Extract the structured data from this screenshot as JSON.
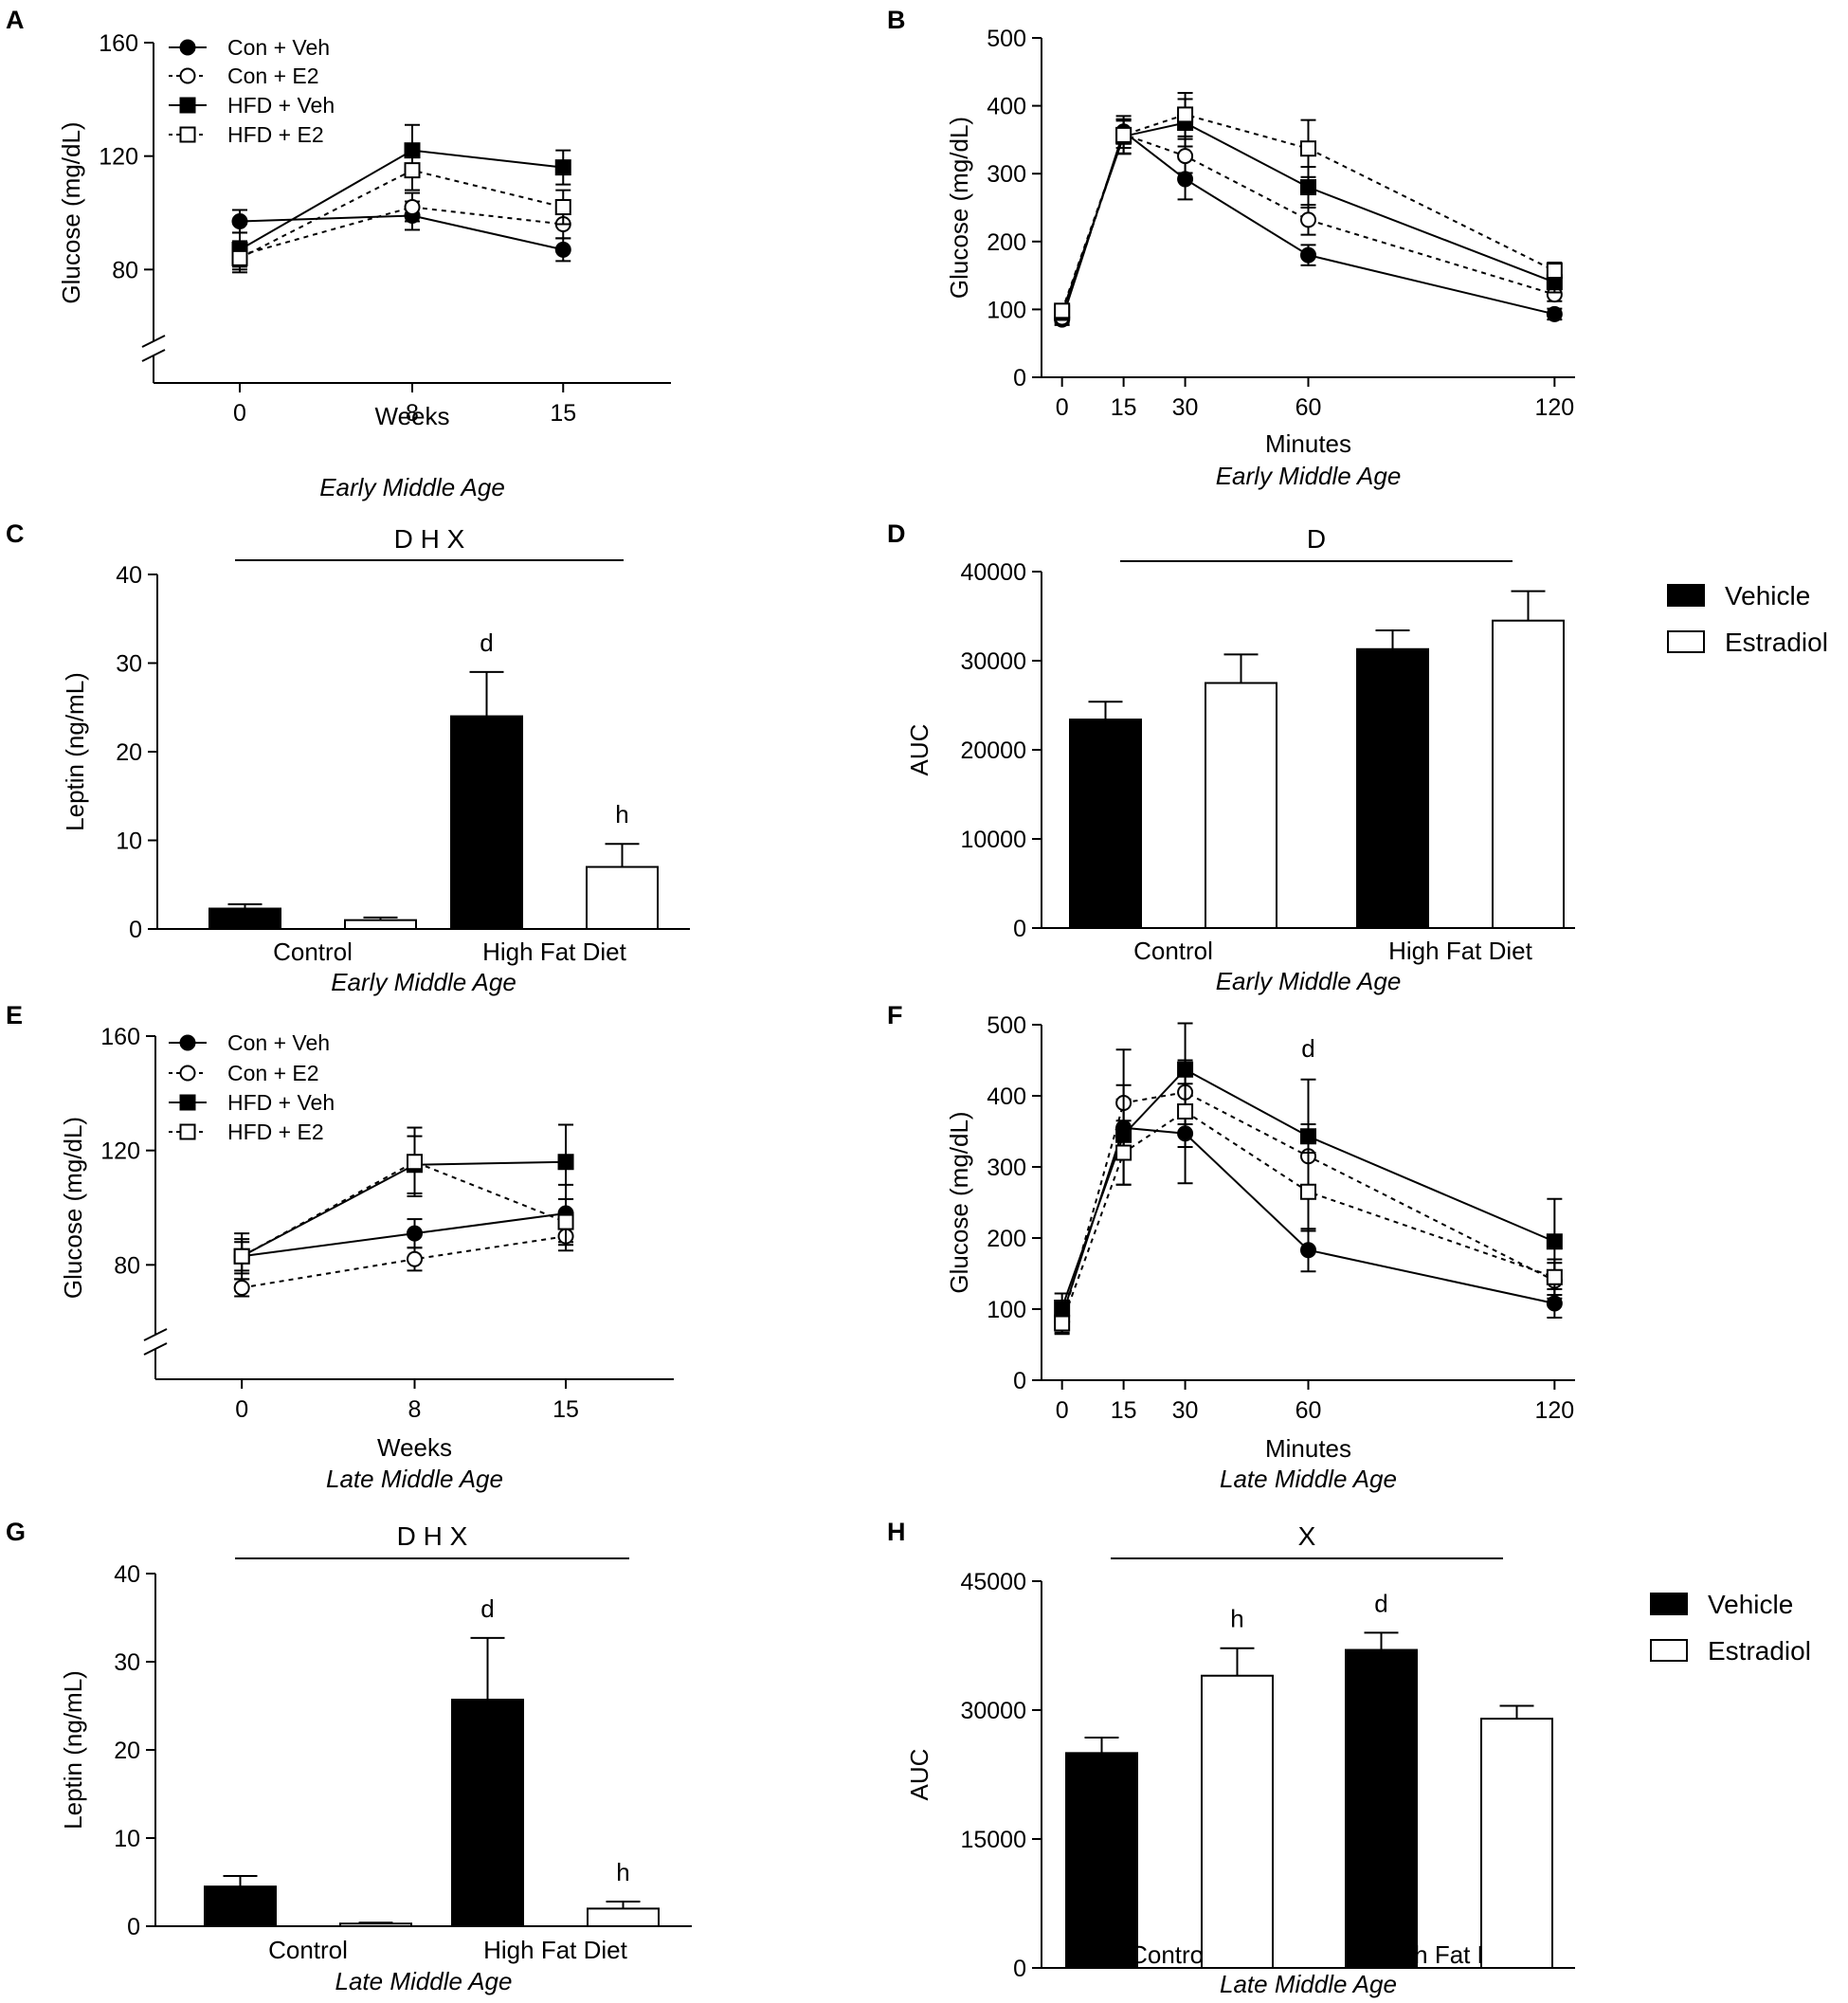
{
  "legend_lines": [
    "Con + Veh",
    "Con + E2",
    "HFD + Veh",
    "HFD + E2"
  ],
  "legend_bars": [
    "Vehicle",
    "Estradiol"
  ],
  "chart_data": [
    {
      "id": "A",
      "type": "line",
      "panel_label": "A",
      "xlabel": "Weeks",
      "xlabel_sub": "Early Middle Age",
      "ylabel": "Glucose (mg/dL)",
      "x": [
        0,
        8,
        15
      ],
      "xlim": [
        -4,
        20
      ],
      "ylim": [
        40,
        160
      ],
      "yticks": [
        80,
        120,
        160
      ],
      "xticks": [
        0,
        8,
        15
      ],
      "axis_break": true,
      "series": [
        {
          "name": "Con + Veh",
          "values": [
            97,
            99,
            87
          ],
          "err": [
            4,
            5,
            4
          ]
        },
        {
          "name": "Con + E2",
          "values": [
            85,
            102,
            96
          ],
          "err": [
            5,
            5,
            5
          ]
        },
        {
          "name": "HFD + Veh",
          "values": [
            87,
            122,
            116
          ],
          "err": [
            6,
            9,
            6
          ]
        },
        {
          "name": "HFD + E2",
          "values": [
            84,
            115,
            102
          ],
          "err": [
            5,
            7,
            6
          ]
        }
      ]
    },
    {
      "id": "B",
      "type": "line",
      "panel_label": "B",
      "xlabel": "Minutes",
      "xlabel_sub": "Early Middle Age",
      "ylabel": "Glucose (mg/dL)",
      "x": [
        0,
        15,
        30,
        60,
        120
      ],
      "xlim": [
        -5,
        125
      ],
      "ylim": [
        0,
        500
      ],
      "yticks": [
        0,
        100,
        200,
        300,
        400,
        500
      ],
      "xticks": [
        0,
        15,
        30,
        60,
        120
      ],
      "series": [
        {
          "name": "Con + Veh",
          "values": [
            85,
            362,
            292,
            180,
            93
          ],
          "err": [
            8,
            18,
            30,
            15,
            8
          ]
        },
        {
          "name": "Con + E2",
          "values": [
            88,
            358,
            326,
            232,
            122
          ],
          "err": [
            8,
            20,
            25,
            22,
            10
          ]
        },
        {
          "name": "HFD + Veh",
          "values": [
            95,
            355,
            375,
            280,
            140
          ],
          "err": [
            8,
            25,
            35,
            30,
            15
          ]
        },
        {
          "name": "HFD + E2",
          "values": [
            98,
            357,
            387,
            337,
            157
          ],
          "err": [
            8,
            28,
            32,
            42,
            12
          ]
        }
      ]
    },
    {
      "id": "C",
      "type": "bar",
      "panel_label": "C",
      "categories": [
        "Control",
        "High Fat Diet"
      ],
      "xlabel_sub": "Early Middle  Age",
      "ylabel": "Leptin (ng/mL)",
      "ylim": [
        0,
        40
      ],
      "yticks": [
        0,
        10,
        20,
        30,
        40
      ],
      "series": [
        {
          "name": "Vehicle",
          "values": [
            2.3,
            24
          ],
          "err": [
            0.5,
            5
          ],
          "labels": [
            "",
            "d"
          ]
        },
        {
          "name": "Estradiol",
          "values": [
            1.0,
            7
          ],
          "err": [
            0.3,
            2.6
          ],
          "labels": [
            "",
            "h"
          ]
        }
      ],
      "significance": "D H X"
    },
    {
      "id": "D",
      "type": "bar",
      "panel_label": "D",
      "categories": [
        "Control",
        "High Fat Diet"
      ],
      "xlabel_sub": "Early Middle Age",
      "ylabel": "AUC",
      "ylim": [
        0,
        40000
      ],
      "yticks": [
        0,
        10000,
        20000,
        30000,
        40000
      ],
      "series": [
        {
          "name": "Vehicle",
          "values": [
            23400,
            31300
          ],
          "err": [
            2000,
            2100
          ],
          "labels": [
            "",
            ""
          ]
        },
        {
          "name": "Estradiol",
          "values": [
            27500,
            34500
          ],
          "err": [
            3200,
            3300
          ],
          "labels": [
            "",
            ""
          ]
        }
      ],
      "significance": "D"
    },
    {
      "id": "E",
      "type": "line",
      "panel_label": "E",
      "xlabel": "Weeks",
      "xlabel_sub": "Late Middle  Age",
      "ylabel": "Glucose (mg/dL)",
      "x": [
        0,
        8,
        15
      ],
      "xlim": [
        -4,
        20
      ],
      "ylim": [
        40,
        160
      ],
      "yticks": [
        80,
        120,
        160
      ],
      "xticks": [
        0,
        8,
        15
      ],
      "axis_break": true,
      "series": [
        {
          "name": "Con + Veh",
          "values": [
            83,
            91,
            98
          ],
          "err": [
            5,
            5,
            10
          ]
        },
        {
          "name": "Con + E2",
          "values": [
            72,
            82,
            90
          ],
          "err": [
            3,
            4,
            5
          ]
        },
        {
          "name": "HFD + Veh",
          "values": [
            83,
            115,
            116
          ],
          "err": [
            8,
            10,
            13
          ]
        },
        {
          "name": "HFD + E2",
          "values": [
            83,
            116,
            95
          ],
          "err": [
            6,
            12,
            8
          ]
        }
      ]
    },
    {
      "id": "F",
      "type": "line",
      "panel_label": "F",
      "xlabel": "Minutes",
      "xlabel_sub": "Late Middle Age",
      "ylabel": "Glucose (mg/dL)",
      "x": [
        0,
        15,
        30,
        60,
        120
      ],
      "xlim": [
        -5,
        125
      ],
      "ylim": [
        0,
        500
      ],
      "yticks": [
        0,
        100,
        200,
        300,
        400,
        500
      ],
      "xticks": [
        0,
        15,
        30,
        60,
        120
      ],
      "annotation": {
        "text": "d",
        "x": 60,
        "y": 455
      },
      "series": [
        {
          "name": "Con + Veh",
          "values": [
            90,
            355,
            347,
            183,
            108
          ],
          "err": [
            15,
            40,
            70,
            30,
            20
          ]
        },
        {
          "name": "Con + E2",
          "values": [
            82,
            390,
            405,
            315,
            140
          ],
          "err": [
            15,
            75,
            45,
            45,
            25
          ]
        },
        {
          "name": "HFD + Veh",
          "values": [
            102,
            345,
            437,
            343,
            195
          ],
          "err": [
            20,
            70,
            65,
            80,
            60
          ]
        },
        {
          "name": "HFD + E2",
          "values": [
            80,
            320,
            378,
            265,
            145
          ],
          "err": [
            15,
            45,
            50,
            55,
            25
          ]
        }
      ]
    },
    {
      "id": "G",
      "type": "bar",
      "panel_label": "G",
      "categories": [
        "Control",
        "High Fat Diet"
      ],
      "xlabel_sub": "Late Middle Age",
      "ylabel": "Leptin (ng/mL)",
      "ylim": [
        0,
        40
      ],
      "yticks": [
        0,
        10,
        20,
        30,
        40
      ],
      "series": [
        {
          "name": "Vehicle",
          "values": [
            4.5,
            25.7
          ],
          "err": [
            1.2,
            7
          ],
          "labels": [
            "",
            "d"
          ]
        },
        {
          "name": "Estradiol",
          "values": [
            0.3,
            2.0
          ],
          "err": [
            0.1,
            0.8
          ],
          "labels": [
            "",
            "h"
          ]
        }
      ],
      "significance": "D H X"
    },
    {
      "id": "H",
      "type": "bar",
      "panel_label": "H",
      "categories": [
        "Control",
        "High Fat Diet"
      ],
      "xlabel_sub": "Late Middle Age",
      "ylabel": "AUC",
      "ylim": [
        0,
        45000
      ],
      "yticks": [
        0,
        15000,
        30000,
        45000
      ],
      "series": [
        {
          "name": "Vehicle",
          "values": [
            25000,
            37000
          ],
          "err": [
            1800,
            2000
          ],
          "labels": [
            "",
            "d"
          ]
        },
        {
          "name": "Estradiol",
          "values": [
            34000,
            29000
          ],
          "err": [
            3200,
            1500
          ],
          "labels": [
            "h",
            ""
          ]
        }
      ],
      "significance": "X"
    }
  ]
}
